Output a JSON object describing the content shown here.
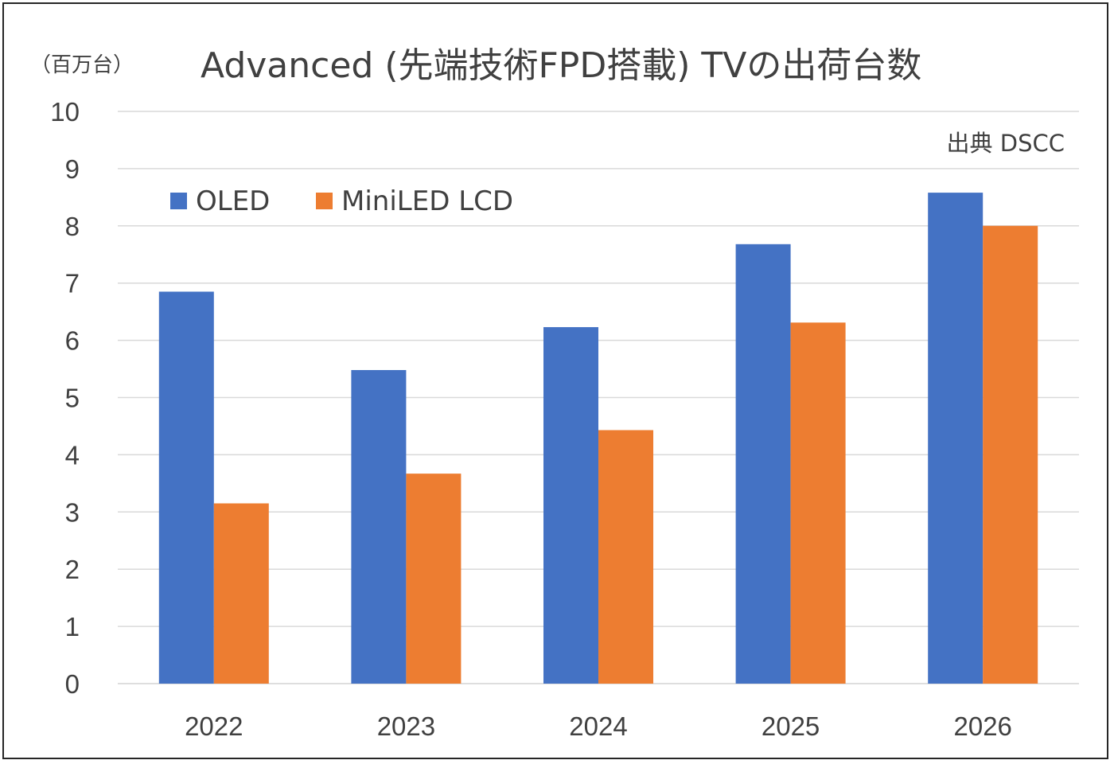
{
  "chart_data": {
    "type": "bar",
    "title": "Advanced (先端技術FPD搭載) TVの出荷台数",
    "unit_label": "（百万台）",
    "source": "出典 DSCC",
    "categories": [
      "2022",
      "2023",
      "2024",
      "2025",
      "2026"
    ],
    "series": [
      {
        "name": "OLED",
        "color": "#4472C4",
        "values": [
          6.85,
          5.48,
          6.23,
          7.68,
          8.58
        ]
      },
      {
        "name": "MiniLED LCD",
        "color": "#ED7D31",
        "values": [
          3.15,
          3.67,
          4.43,
          6.31,
          8.0
        ]
      }
    ],
    "xlabel": "",
    "ylabel": "",
    "ylim": [
      0,
      10
    ],
    "yticks": [
      0,
      1,
      2,
      3,
      4,
      5,
      6,
      7,
      8,
      9,
      10
    ],
    "grid": true,
    "legend_position": "top-left"
  }
}
